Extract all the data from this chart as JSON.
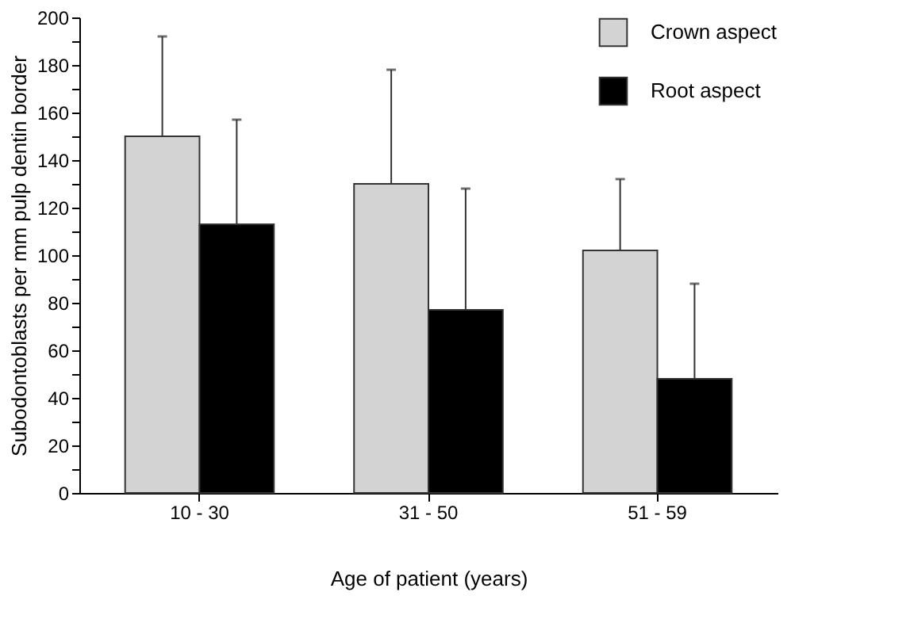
{
  "chart_data": {
    "type": "bar",
    "xlabel": "Age of patient (years)",
    "ylabel": "Subodontoblasts per mm pulp dentin border",
    "categories": [
      "10 - 30",
      "31 - 50",
      "51 - 59"
    ],
    "series": [
      {
        "name": "Crown aspect",
        "color": "#d3d3d3",
        "values": [
          150,
          130,
          102
        ],
        "errors": [
          [
            150,
            192
          ],
          [
            130,
            178
          ],
          [
            102,
            132
          ]
        ]
      },
      {
        "name": "Root aspect",
        "color": "#000000",
        "values": [
          113,
          77,
          48
        ],
        "errors": [
          [
            113,
            157
          ],
          [
            77,
            128
          ],
          [
            48,
            88
          ]
        ]
      }
    ],
    "ylim": [
      0,
      200
    ],
    "yticks": [
      0,
      {
        "value": 10,
        "label": null
      },
      20,
      {
        "value": 30,
        "label": null
      },
      40,
      {
        "value": 50,
        "label": null
      },
      60,
      {
        "value": 70,
        "label": null
      },
      80,
      {
        "value": 90,
        "label": null
      },
      100,
      {
        "value": 110,
        "label": null
      },
      120,
      {
        "value": 130,
        "label": null
      },
      140,
      {
        "value": 150,
        "label": null
      },
      160,
      {
        "value": 170,
        "label": null
      },
      180,
      {
        "value": 190,
        "label": null
      },
      200
    ],
    "grid": false,
    "legend": "top right"
  }
}
